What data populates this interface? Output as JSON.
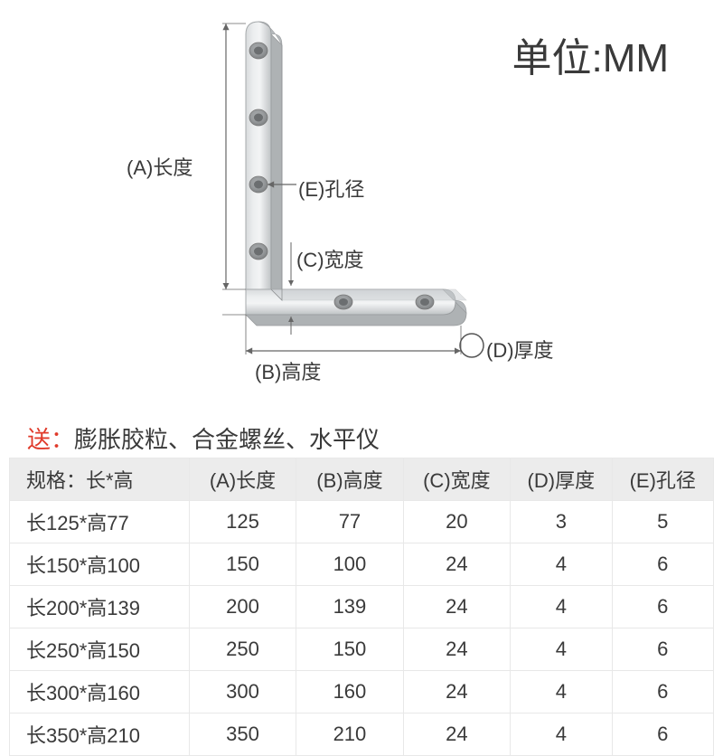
{
  "unit_label": "单位:MM",
  "diagram": {
    "labels": {
      "A": "(A)长度",
      "B": "(B)高度",
      "C": "(C)宽度",
      "D": "(D)厚度",
      "E": "(E)孔径"
    },
    "bracket": {
      "metal_light": "#e2e4e6",
      "metal_mid": "#c6cacd",
      "metal_dark": "#9fa3a6",
      "hole_outer": "#b0b3b5",
      "hole_inner": "#8a8d8f",
      "arrow_color": "#666666"
    }
  },
  "gift": {
    "prefix": "送：",
    "items": "膨胀胶粒、合金螺丝、水平仪"
  },
  "table": {
    "columns": [
      "规格：长*高",
      "(A)长度",
      "(B)高度",
      "(C)宽度",
      "(D)厚度",
      "(E)孔径"
    ],
    "rows": [
      [
        "长125*高77",
        "125",
        "77",
        "20",
        "3",
        "5"
      ],
      [
        "长150*高100",
        "150",
        "100",
        "24",
        "4",
        "6"
      ],
      [
        "长200*高139",
        "200",
        "139",
        "24",
        "4",
        "6"
      ],
      [
        "长250*高150",
        "250",
        "150",
        "24",
        "4",
        "6"
      ],
      [
        "长300*高160",
        "300",
        "160",
        "24",
        "4",
        "6"
      ],
      [
        "长350*高210",
        "350",
        "210",
        "24",
        "4",
        "6"
      ]
    ]
  }
}
